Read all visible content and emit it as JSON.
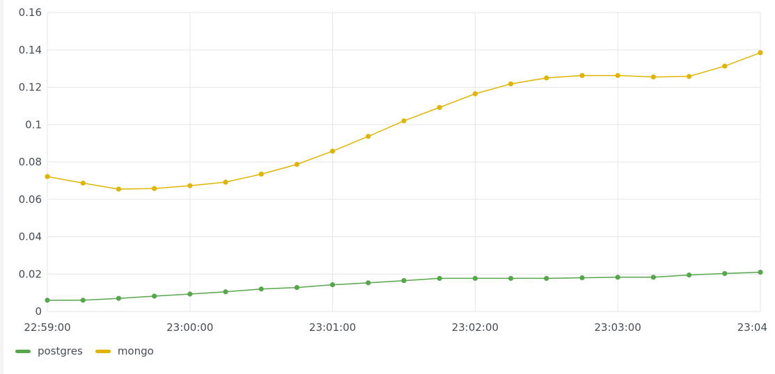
{
  "chart_data": {
    "type": "line",
    "title": "",
    "xlabel": "",
    "ylabel": "",
    "x": [
      "22:59:00",
      "22:59:15",
      "22:59:30",
      "22:59:45",
      "23:00:00",
      "23:00:15",
      "23:00:30",
      "23:00:45",
      "23:01:00",
      "23:01:15",
      "23:01:30",
      "23:01:45",
      "23:02:00",
      "23:02:15",
      "23:02:30",
      "23:02:45",
      "23:03:00",
      "23:03:15",
      "23:03:30",
      "23:03:45",
      "23:04:00"
    ],
    "x_tick_labels": [
      "22:59:00",
      "23:00:00",
      "23:01:00",
      "23:02:00",
      "23:03:00",
      "23:04"
    ],
    "y_tick_labels": [
      "0",
      "0.02",
      "0.04",
      "0.06",
      "0.08",
      "0.1",
      "0.12",
      "0.14",
      "0.16"
    ],
    "ylim": [
      0,
      0.16
    ],
    "grid": true,
    "legend_position": "bottom-left",
    "series": [
      {
        "name": "postgres",
        "color": "#56a64b",
        "values": [
          0.006,
          0.006,
          0.007,
          0.0082,
          0.0093,
          0.0105,
          0.012,
          0.0128,
          0.0143,
          0.0153,
          0.0165,
          0.0177,
          0.0177,
          0.0177,
          0.0177,
          0.018,
          0.0183,
          0.0183,
          0.0195,
          0.0203,
          0.021
        ]
      },
      {
        "name": "mongo",
        "color": "#e0b400",
        "values": [
          0.0722,
          0.0687,
          0.0655,
          0.0658,
          0.0673,
          0.0692,
          0.0735,
          0.0787,
          0.0858,
          0.0937,
          0.102,
          0.1092,
          0.1165,
          0.1218,
          0.125,
          0.1263,
          0.1263,
          0.1255,
          0.1258,
          0.1313,
          0.1385
        ]
      }
    ]
  }
}
